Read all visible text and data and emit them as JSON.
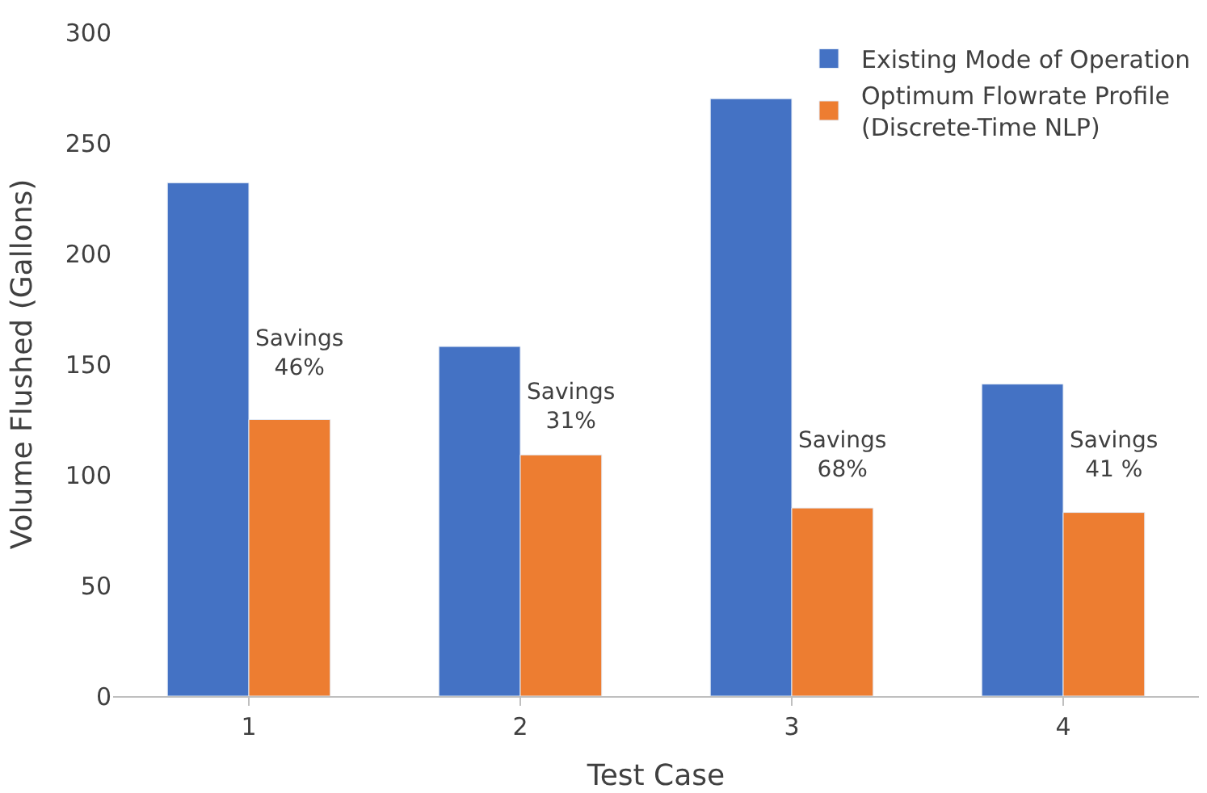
{
  "chart_data": {
    "type": "bar",
    "xlabel": "Test Case",
    "ylabel": "Volume Flushed (Gallons)",
    "categories": [
      "1",
      "2",
      "3",
      "4"
    ],
    "series": [
      {
        "name": "Existing Mode of Operation",
        "color": "#4472c4",
        "values": [
          232,
          158,
          270,
          141
        ]
      },
      {
        "name": "Optimum Flowrate Profile\n(Discrete-Time NLP)",
        "color": "#ed7d31",
        "values": [
          125,
          109,
          85,
          83
        ]
      }
    ],
    "ylim": [
      0,
      300
    ],
    "yticks": [
      0,
      50,
      100,
      150,
      200,
      250,
      300
    ],
    "legend": "top right",
    "annotations": [
      {
        "text": "Savings\n46%",
        "x": "1",
        "y": 155
      },
      {
        "text": "Savings\n31%",
        "x": "2",
        "y": 131
      },
      {
        "text": "Savings\n68%",
        "x": "3",
        "y": 109
      },
      {
        "text": "Savings\n41 %",
        "x": "4",
        "y": 109
      }
    ]
  }
}
